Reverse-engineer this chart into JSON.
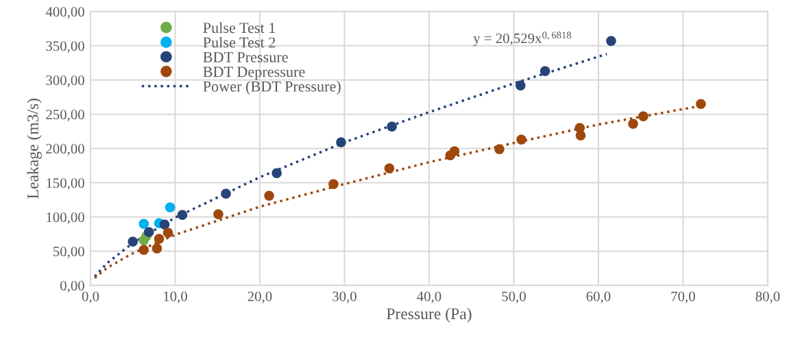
{
  "chart_data": {
    "type": "scatter",
    "xlabel": "Pressure (Pa)",
    "ylabel": "Leakage (m3/s)",
    "xlim": [
      0,
      80
    ],
    "ylim": [
      0,
      400
    ],
    "xticks": [
      {
        "value": 0,
        "label": "0,0"
      },
      {
        "value": 10,
        "label": "10,0"
      },
      {
        "value": 20,
        "label": "20,0"
      },
      {
        "value": 30,
        "label": "30,0"
      },
      {
        "value": 40,
        "label": "40,0"
      },
      {
        "value": 50,
        "label": "50,0"
      },
      {
        "value": 60,
        "label": "60,0"
      },
      {
        "value": 70,
        "label": "70,0"
      },
      {
        "value": 80,
        "label": "80,0"
      }
    ],
    "yticks": [
      {
        "value": 0,
        "label": "0,00"
      },
      {
        "value": 50,
        "label": "50,00"
      },
      {
        "value": 100,
        "label": "100,00"
      },
      {
        "value": 150,
        "label": "150,00"
      },
      {
        "value": 200,
        "label": "200,00"
      },
      {
        "value": 250,
        "label": "250,00"
      },
      {
        "value": 300,
        "label": "300,00"
      },
      {
        "value": 350,
        "label": "350,00"
      },
      {
        "value": 400,
        "label": "400,00"
      }
    ],
    "grid": true,
    "legend": "top left",
    "marker": "circle",
    "annotations": [
      "y = 20,529x$^{0,6818}$"
    ],
    "series": [
      {
        "name": "Pulse Test 1",
        "color": "#70ad47",
        "x": [
          6.3,
          6.6
        ],
        "values": [
          66,
          72
        ]
      },
      {
        "name": "Pulse Test 2",
        "color": "#00b0f0",
        "x": [
          6.3,
          8.1,
          9.4
        ],
        "values": [
          90,
          91,
          114
        ]
      },
      {
        "name": "BDT Pressure",
        "color": "#264478",
        "x": [
          5.0,
          6.9,
          8.75,
          10.85,
          16.0,
          22.0,
          29.6,
          35.6,
          50.8,
          53.7,
          61.5
        ],
        "values": [
          64,
          78,
          89,
          103,
          134,
          164,
          209,
          232,
          292,
          313,
          357
        ]
      },
      {
        "name": "BDT Depressure",
        "color": "#9e480e",
        "x": [
          6.3,
          7.85,
          8.1,
          9.15,
          15.1,
          21.1,
          28.7,
          35.3,
          42.5,
          43.0,
          48.3,
          50.9,
          57.8,
          57.9,
          64.1,
          65.3,
          72.1
        ],
        "values": [
          52,
          54,
          68,
          77,
          104,
          131,
          148,
          171,
          190,
          196,
          199,
          213,
          230,
          219,
          236,
          247,
          265
        ]
      },
      {
        "name": "Power (BDT Pressure)",
        "type": "line",
        "line_style": "dotted",
        "marker": "none",
        "color": "#264478",
        "x": [
          0.5,
          2,
          5,
          10,
          20,
          30,
          40,
          50,
          61
        ],
        "values": [
          13,
          33,
          62,
          99,
          158,
          209,
          253,
          295,
          338
        ]
      },
      {
        "type": "line",
        "line_style": "dotted",
        "marker": "none",
        "color": "#9e480e",
        "x": [
          0.5,
          2,
          5,
          10,
          20,
          30,
          40,
          50,
          60,
          72
        ],
        "values": [
          11,
          26,
          47,
          74,
          115,
          148,
          180,
          208,
          235,
          262
        ]
      }
    ]
  }
}
